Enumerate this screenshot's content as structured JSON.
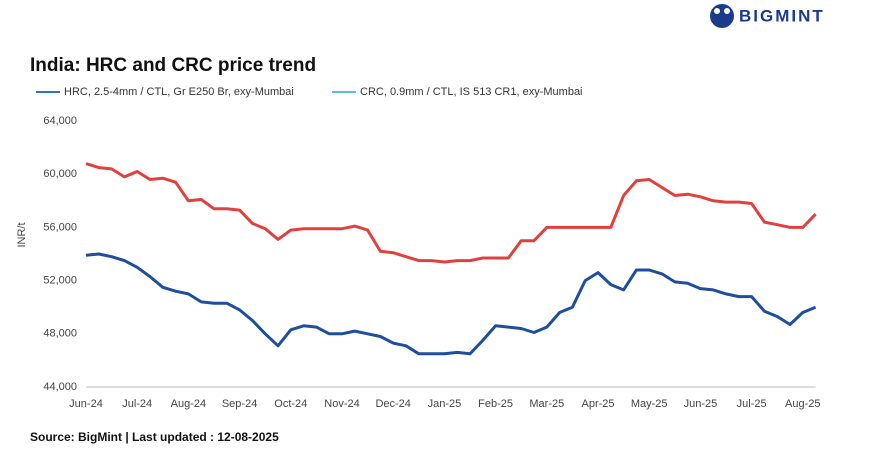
{
  "brand": "BIGMINT",
  "chart_data": {
    "type": "line",
    "title": "India: HRC and CRC price trend",
    "y_label": "INR/t",
    "source": "Source: BigMint | Last updated : 12-08-2025",
    "categories": [
      "Jun-24",
      null,
      null,
      null,
      "Jul-24",
      null,
      null,
      null,
      "Aug-24",
      null,
      null,
      null,
      "Sep-24",
      null,
      null,
      null,
      "Oct-24",
      null,
      null,
      null,
      "Nov-24",
      null,
      null,
      null,
      "Dec-24",
      null,
      null,
      null,
      "Jan-25",
      null,
      null,
      null,
      "Feb-25",
      null,
      null,
      null,
      "Mar-25",
      null,
      null,
      null,
      "Apr-25",
      null,
      null,
      null,
      "May-25",
      null,
      null,
      null,
      "Jun-25",
      null,
      null,
      null,
      "Jul-25",
      null,
      null,
      null,
      "Aug-25",
      null
    ],
    "series": [
      {
        "name": "HRC, 2.5-4mm / CTL, Gr E250 Br, exy-Mumbai",
        "color": "#1f4e9c",
        "legend_color": "#2a7ab9",
        "values": [
          53900,
          54000,
          53800,
          53500,
          53000,
          52300,
          51500,
          51200,
          51000,
          50400,
          50300,
          50300,
          49800,
          49000,
          48000,
          47100,
          48300,
          48600,
          48500,
          48000,
          48000,
          48200,
          48000,
          47800,
          47300,
          47100,
          46500,
          46500,
          46500,
          46600,
          46500,
          47500,
          48600,
          48500,
          48400,
          48100,
          48500,
          49600,
          50000,
          52000,
          52600,
          51700,
          51300,
          52800,
          52800,
          52500,
          51900,
          51800,
          51400,
          51300,
          51000,
          50800,
          50800,
          49700,
          49300,
          48700,
          49600,
          50000
        ]
      },
      {
        "name": "CRC, 0.9mm / CTL, IS 513 CR1, exy-Mumbai",
        "color": "#e0413f",
        "legend_color": "#5bc0de",
        "values": [
          60800,
          60500,
          60400,
          59800,
          60200,
          59600,
          59700,
          59400,
          58000,
          58100,
          57400,
          57400,
          57300,
          56300,
          55900,
          55100,
          55800,
          55900,
          55900,
          55900,
          55900,
          56100,
          55800,
          54200,
          54100,
          53800,
          53500,
          53500,
          53400,
          53500,
          53500,
          53700,
          53700,
          53700,
          55000,
          55000,
          56000,
          56000,
          56000,
          56000,
          56000,
          56000,
          58400,
          59500,
          59600,
          59000,
          58400,
          58500,
          58300,
          58000,
          57900,
          57900,
          57800,
          56400,
          56200,
          56000,
          56000,
          57000
        ]
      }
    ],
    "ylim": [
      44000,
      64000
    ],
    "yticks": [
      {
        "value": 44000,
        "label": "44,000"
      },
      {
        "value": 48000,
        "label": "48,000"
      },
      {
        "value": 52000,
        "label": "52,000"
      },
      {
        "value": 56000,
        "label": "56,000"
      },
      {
        "value": 60000,
        "label": "60,000"
      },
      {
        "value": 64000,
        "label": "64,000"
      }
    ],
    "grid": false
  }
}
